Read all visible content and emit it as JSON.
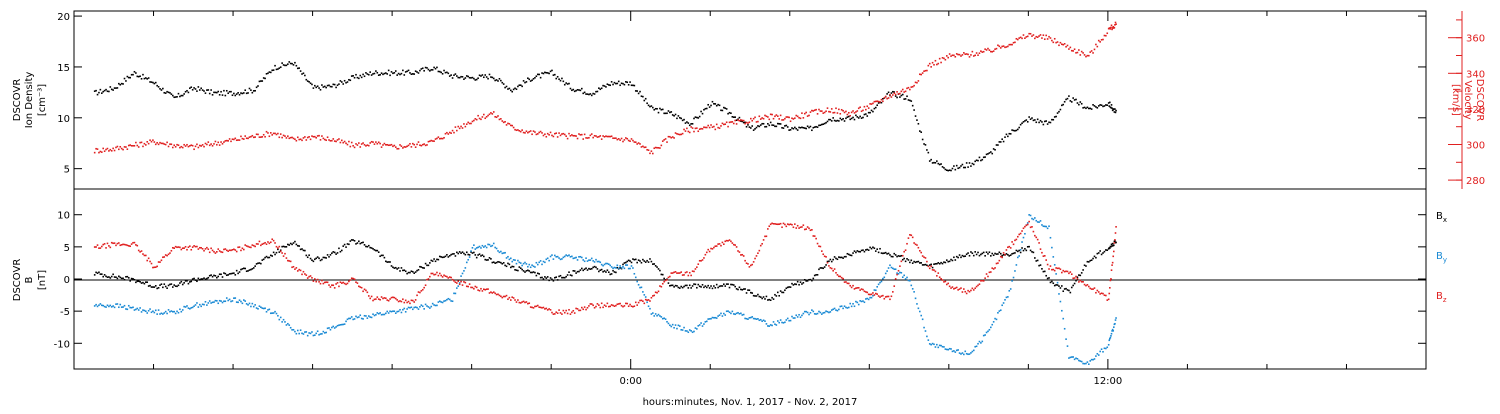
{
  "colors": {
    "black": "#000000",
    "red": "#e02020",
    "blue": "#1a8ad4"
  },
  "xaxis": {
    "tick_labels": [
      "0:00",
      "12:00"
    ],
    "title": "hours:minutes, Nov.  1, 2017 - Nov.  2, 2017"
  },
  "chart_data": [
    {
      "type": "scatter",
      "panel": "top",
      "left_axis": {
        "label_lines": [
          "DSCOVR",
          "Ion Density",
          "[cm⁻³]"
        ],
        "ylim": [
          3,
          20.5
        ],
        "ticks": [
          5,
          10,
          15,
          20
        ],
        "tick_labels": [
          "5",
          "10",
          "15",
          "20"
        ]
      },
      "right_axis": {
        "label_lines": [
          "DSCOVR",
          "Velocity",
          "[km/s]"
        ],
        "ylim": [
          275,
          375
        ],
        "ticks": [
          280,
          300,
          320,
          340,
          360
        ],
        "tick_labels": [
          "280",
          "300",
          "320",
          "340",
          "360"
        ]
      },
      "series": [
        {
          "color": "#000000",
          "axis": "left",
          "x": [
            -13.5,
            -13,
            -12.5,
            -12,
            -11.5,
            -11,
            -10.5,
            -10,
            -9.5,
            -9,
            -8.5,
            -8,
            -7.5,
            -7,
            -6.5,
            -6,
            -5.5,
            -5,
            -4.5,
            -4,
            -3.5,
            -3,
            -2.5,
            -2,
            -1.5,
            -1,
            -0.5,
            0,
            0.5,
            1,
            1.5,
            2,
            2.5,
            3,
            3.5,
            4,
            4.5,
            5,
            5.5,
            6,
            6.5,
            7,
            7.5,
            8,
            8.5,
            9,
            9.5,
            10,
            10.5,
            11,
            11.5,
            12,
            12.2
          ],
          "y": [
            12.5,
            13,
            14.5,
            13.5,
            12,
            13,
            12.5,
            12.5,
            12.8,
            15,
            15.5,
            13,
            13.2,
            14,
            14.5,
            14.5,
            14.5,
            15,
            14.2,
            14,
            14.2,
            12.8,
            14,
            14.5,
            13,
            12.5,
            13.5,
            13.5,
            11,
            10.5,
            9.5,
            11.5,
            10.5,
            9,
            9.5,
            9,
            9,
            10,
            10,
            10.5,
            12.5,
            12,
            6,
            5,
            5.5,
            6.5,
            8.5,
            10,
            9.5,
            12,
            11,
            11.5,
            10.5
          ]
        },
        {
          "color": "#e02020",
          "axis": "right",
          "x": [
            -13.5,
            -13,
            -12.5,
            -12,
            -11.5,
            -11,
            -10.5,
            -10,
            -9.5,
            -9,
            -8.5,
            -8,
            -7.5,
            -7,
            -6.5,
            -6,
            -5.5,
            -5,
            -4.5,
            -4,
            -3.5,
            -3,
            -2.5,
            -2,
            -1.5,
            -1,
            -0.5,
            0,
            0.5,
            1,
            1.5,
            2,
            2.5,
            3,
            3.5,
            4,
            4.5,
            5,
            5.5,
            6,
            6.5,
            7,
            7.5,
            8,
            8.5,
            9,
            9.5,
            10,
            10.5,
            11,
            11.5,
            12,
            12.2
          ],
          "y": [
            297,
            298,
            300,
            302,
            300,
            299,
            301,
            303,
            305,
            307,
            303,
            305,
            303,
            300,
            301,
            299,
            300,
            302,
            308,
            314,
            318,
            310,
            307,
            306,
            305,
            305,
            304,
            303,
            296,
            305,
            309,
            310,
            312,
            314,
            316,
            315,
            318,
            320,
            318,
            322,
            328,
            332,
            345,
            350,
            351,
            353,
            357,
            362,
            360,
            355,
            350,
            365,
            368
          ]
        }
      ]
    },
    {
      "type": "scatter",
      "panel": "bottom",
      "left_axis": {
        "label_lines": [
          "DSCOVR",
          "B",
          "[nT]"
        ],
        "ylim": [
          -14,
          14
        ],
        "ticks": [
          -10,
          -5,
          0,
          5,
          10
        ],
        "tick_labels": [
          "-10",
          "-5",
          "0",
          "5",
          "10"
        ]
      },
      "series": [
        {
          "name": "Bx",
          "color": "#000000",
          "x": [
            -13.5,
            -13,
            -12.5,
            -12,
            -11.5,
            -11,
            -10.5,
            -10,
            -9.5,
            -9,
            -8.5,
            -8,
            -7.5,
            -7,
            -6.5,
            -6,
            -5.5,
            -5,
            -4.5,
            -4,
            -3.5,
            -3,
            -2.5,
            -2,
            -1.5,
            -1,
            -0.5,
            0,
            0.5,
            1,
            1.5,
            2,
            2.5,
            3,
            3.5,
            4,
            4.5,
            5,
            5.5,
            6,
            6.5,
            7,
            7.5,
            8,
            8.5,
            9,
            9.5,
            10,
            10.5,
            11,
            11.5,
            12,
            12.2
          ],
          "y": [
            1,
            0.5,
            0,
            -1,
            -1,
            0,
            0.5,
            1,
            2,
            4,
            6,
            3,
            4,
            6,
            5,
            2,
            1,
            3,
            4,
            4,
            3,
            2,
            1,
            0,
            1,
            2,
            1,
            3,
            3,
            -1,
            -1,
            -1,
            -1,
            -2,
            -3,
            -1,
            0,
            3,
            4,
            5,
            4,
            3,
            2,
            3,
            4,
            4,
            4,
            5,
            0,
            -2,
            3,
            5,
            6
          ]
        },
        {
          "name": "By",
          "color": "#1a8ad4",
          "x": [
            -13.5,
            -13,
            -12.5,
            -12,
            -11.5,
            -11,
            -10.5,
            -10,
            -9.5,
            -9,
            -8.5,
            -8,
            -7.5,
            -7,
            -6.5,
            -6,
            -5.5,
            -5,
            -4.5,
            -4,
            -3.5,
            -3,
            -2.5,
            -2,
            -1.5,
            -1,
            -0.5,
            0,
            0.5,
            1,
            1.5,
            2,
            2.5,
            3,
            3.5,
            4,
            4.5,
            5,
            5.5,
            6,
            6.5,
            7,
            7.5,
            8,
            8.5,
            9,
            9.5,
            10,
            10.5,
            11,
            11.5,
            12,
            12.2
          ],
          "y": [
            -4,
            -4,
            -4.5,
            -5,
            -5,
            -4,
            -3.5,
            -3,
            -4,
            -5,
            -8,
            -8.5,
            -7.5,
            -6,
            -5.5,
            -5,
            -4.5,
            -4,
            -3,
            5,
            5.5,
            3,
            2,
            3.5,
            3.5,
            3,
            2,
            2,
            -5,
            -7,
            -8,
            -6,
            -5,
            -6,
            -7,
            -6,
            -5,
            -5,
            -4,
            -3,
            2,
            0,
            -10,
            -11,
            -11.5,
            -8,
            -2,
            10,
            8,
            -12,
            -13,
            -10,
            -6
          ]
        },
        {
          "name": "Bz",
          "color": "#e02020",
          "x": [
            -13.5,
            -13,
            -12.5,
            -12,
            -11.5,
            -11,
            -10.5,
            -10,
            -9.5,
            -9,
            -8.5,
            -8,
            -7.5,
            -7,
            -6.5,
            -6,
            -5.5,
            -5,
            -4.5,
            -4,
            -3.5,
            -3,
            -2.5,
            -2,
            -1.5,
            -1,
            -0.5,
            0,
            0.5,
            1,
            1.5,
            2,
            2.5,
            3,
            3.5,
            4,
            4.5,
            5,
            5.5,
            6,
            6.5,
            7,
            7.5,
            8,
            8.5,
            9,
            9.5,
            10,
            10.5,
            11,
            11.5,
            12,
            12.2
          ],
          "y": [
            5,
            5.5,
            5.5,
            2,
            5,
            5,
            4.5,
            4.5,
            5.5,
            6,
            2,
            0,
            -1,
            0,
            -3,
            -3,
            -3.5,
            1,
            0,
            -1,
            -2,
            -3,
            -4,
            -5,
            -5,
            -4,
            -4,
            -4,
            -3,
            1,
            1,
            5,
            6,
            2,
            8.5,
            8.5,
            8,
            2,
            -1,
            -2,
            -3,
            7,
            2,
            -1,
            -2,
            1,
            5,
            9,
            2,
            1,
            -1,
            -3,
            9
          ]
        }
      ],
      "legend": [
        {
          "base": "B",
          "sub": "x",
          "color": "#000000"
        },
        {
          "base": "B",
          "sub": "y",
          "color": "#1a8ad4"
        },
        {
          "base": "B",
          "sub": "z",
          "color": "#e02020"
        }
      ],
      "legend_placement": "right"
    }
  ],
  "shared_x": {
    "xlim": [
      -14,
      20
    ],
    "major_ticks": [
      0,
      12
    ],
    "minor_ticks": [
      -12,
      -10,
      -8,
      -6,
      -4,
      -2,
      2,
      4,
      6,
      8,
      10,
      14,
      16,
      18
    ]
  }
}
